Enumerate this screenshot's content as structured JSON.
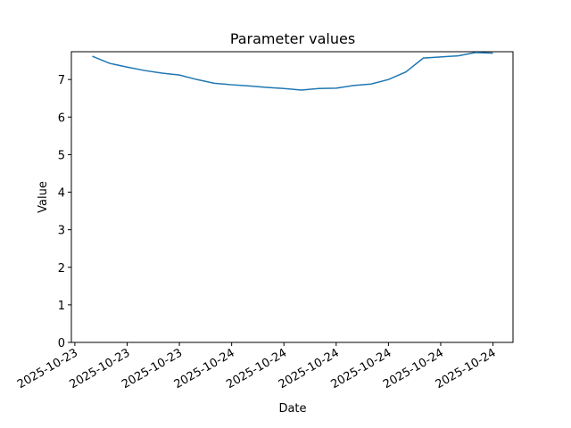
{
  "chart_data": {
    "type": "line",
    "title": "Parameter values",
    "x_label": "Date",
    "y_label": "Value",
    "x": [
      1,
      2,
      3,
      4,
      5,
      6,
      7,
      8,
      9,
      10,
      11,
      12,
      13,
      14,
      15,
      16,
      17,
      18,
      19,
      20,
      21,
      22,
      23,
      24
    ],
    "series": [
      {
        "name": "Value",
        "color": "#1f77b4",
        "values": [
          7.62,
          7.43,
          7.33,
          7.24,
          7.17,
          7.12,
          7.0,
          6.9,
          6.86,
          6.83,
          6.79,
          6.76,
          6.72,
          6.76,
          6.77,
          6.84,
          6.88,
          7.0,
          7.2,
          7.57,
          7.6,
          7.63,
          7.72,
          7.7
        ]
      }
    ],
    "xlim": [
      -0.2,
      25.15
    ],
    "xticks": [
      {
        "value": 0,
        "label": "2025-10-23"
      },
      {
        "value": 3,
        "label": "2025-10-23"
      },
      {
        "value": 6,
        "label": "2025-10-23"
      },
      {
        "value": 9,
        "label": "2025-10-24"
      },
      {
        "value": 12,
        "label": "2025-10-24"
      },
      {
        "value": 15,
        "label": "2025-10-24"
      },
      {
        "value": 18,
        "label": "2025-10-24"
      },
      {
        "value": 21,
        "label": "2025-10-24"
      },
      {
        "value": 24,
        "label": "2025-10-24"
      }
    ],
    "ylim": [
      0,
      7.74
    ],
    "yticks": [
      0,
      1,
      2,
      3,
      4,
      5,
      6,
      7
    ]
  }
}
